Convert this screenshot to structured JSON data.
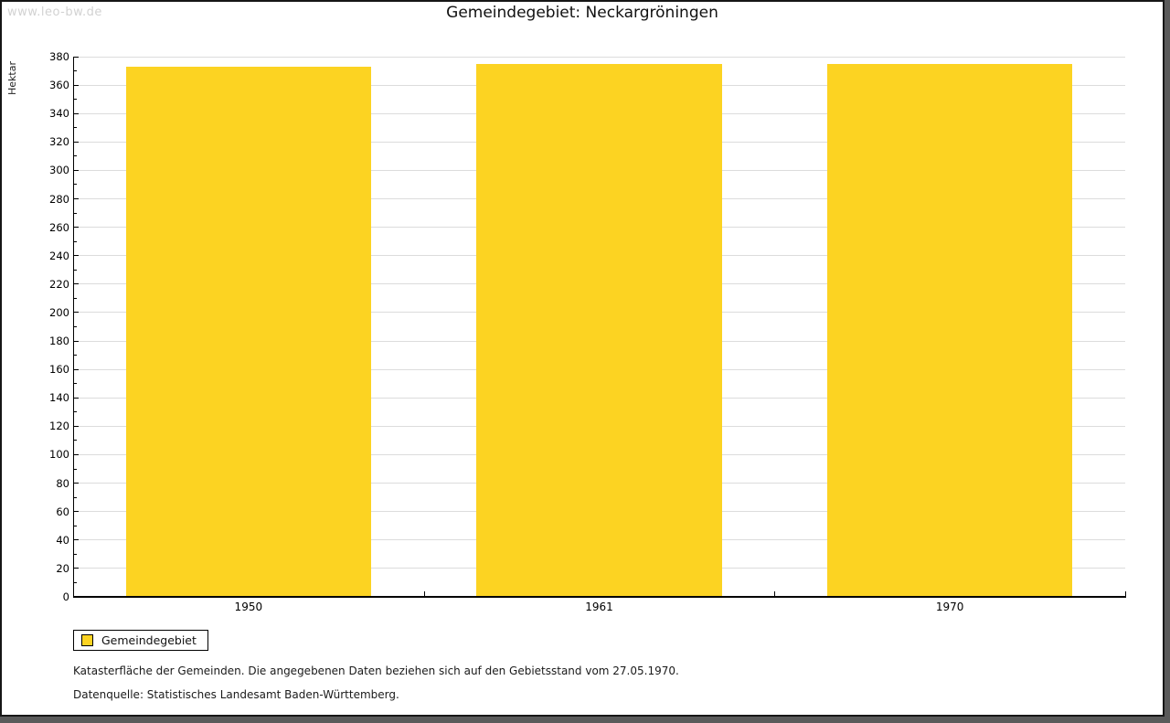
{
  "watermark": "www.leo-bw.de",
  "title": "Gemeindegebiet: Neckargröningen",
  "chart_data": {
    "type": "bar",
    "title": "Gemeindegebiet: Neckargröningen",
    "categories": [
      "1950",
      "1961",
      "1970"
    ],
    "series": [
      {
        "name": "Gemeindegebiet",
        "values": [
          373,
          375,
          375
        ]
      }
    ],
    "xlabel": "",
    "ylabel": "Hektar",
    "ylim": [
      0,
      380
    ],
    "ytick_major": 20,
    "ytick_minor": 10,
    "grid": "horizontal-major",
    "bar_color": "#fcd322",
    "legend_position": "bottom-left"
  },
  "legend": {
    "items": [
      {
        "label": "Gemeindegebiet",
        "color": "#fcd322"
      }
    ]
  },
  "footnotes": [
    "Katasterfläche der Gemeinden. Die angegebenen Daten beziehen sich auf den Gebietsstand vom 27.05.1970.",
    "Datenquelle: Statistisches Landesamt Baden-Württemberg."
  ],
  "colors": {
    "bar": "#fcd322",
    "gridline": "#dcdcdc",
    "axis": "#000000",
    "watermark": "#d2d2d2",
    "frame_shadow": "#5a5a5a",
    "frame_border": "#161616"
  }
}
